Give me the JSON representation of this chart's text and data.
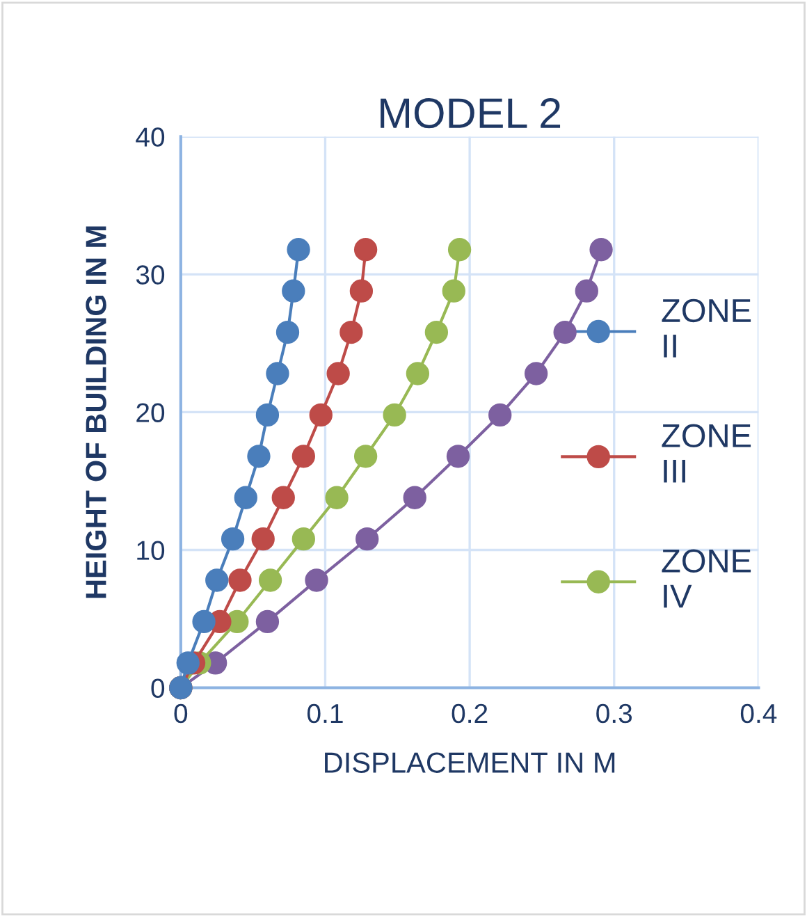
{
  "chart_data": {
    "type": "line",
    "title": "MODEL 2",
    "xlabel": "DISPLACEMENT IN M",
    "ylabel": "HEIGHT OF BUILDING IN M",
    "xlim": [
      0,
      0.4
    ],
    "xticks": [
      0,
      0.1,
      0.2,
      0.3,
      0.4
    ],
    "ylim": [
      0,
      40
    ],
    "yticks": [
      0,
      10,
      20,
      30,
      40
    ],
    "grid": true,
    "legend": "right",
    "marker": "circle",
    "line_style": "solid",
    "series": [
      {
        "name": "ZONE II",
        "color": "#4a7ebb",
        "x": [
          0,
          0.005,
          0.016,
          0.025,
          0.036,
          0.045,
          0.054,
          0.06,
          0.067,
          0.074,
          0.078,
          0.0815
        ],
        "values": [
          0,
          1.8,
          4.8,
          7.8,
          10.8,
          13.8,
          16.8,
          19.8,
          22.8,
          25.8,
          28.8,
          31.8
        ]
      },
      {
        "name": "ZONE III",
        "color": "#be4b48",
        "x": [
          0,
          0.009,
          0.027,
          0.041,
          0.057,
          0.071,
          0.085,
          0.097,
          0.109,
          0.118,
          0.125,
          0.128
        ],
        "values": [
          0,
          1.8,
          4.8,
          7.8,
          10.8,
          13.8,
          16.8,
          19.8,
          22.8,
          25.8,
          28.8,
          31.8
        ]
      },
      {
        "name": "ZONE IV",
        "color": "#98b954",
        "x": [
          0,
          0.013,
          0.039,
          0.062,
          0.085,
          0.108,
          0.128,
          0.148,
          0.164,
          0.177,
          0.189,
          0.193
        ],
        "values": [
          0,
          1.8,
          4.8,
          7.8,
          10.8,
          13.8,
          16.8,
          19.8,
          22.8,
          25.8,
          28.8,
          31.8
        ]
      },
      {
        "color": "#7d60a0",
        "x": [
          0,
          0.024,
          0.06,
          0.094,
          0.129,
          0.162,
          0.192,
          0.221,
          0.246,
          0.266,
          0.281,
          0.291
        ],
        "values": [
          0,
          1.8,
          4.8,
          7.8,
          10.8,
          13.8,
          16.8,
          19.8,
          22.8,
          25.8,
          28.8,
          31.8
        ]
      }
    ]
  }
}
